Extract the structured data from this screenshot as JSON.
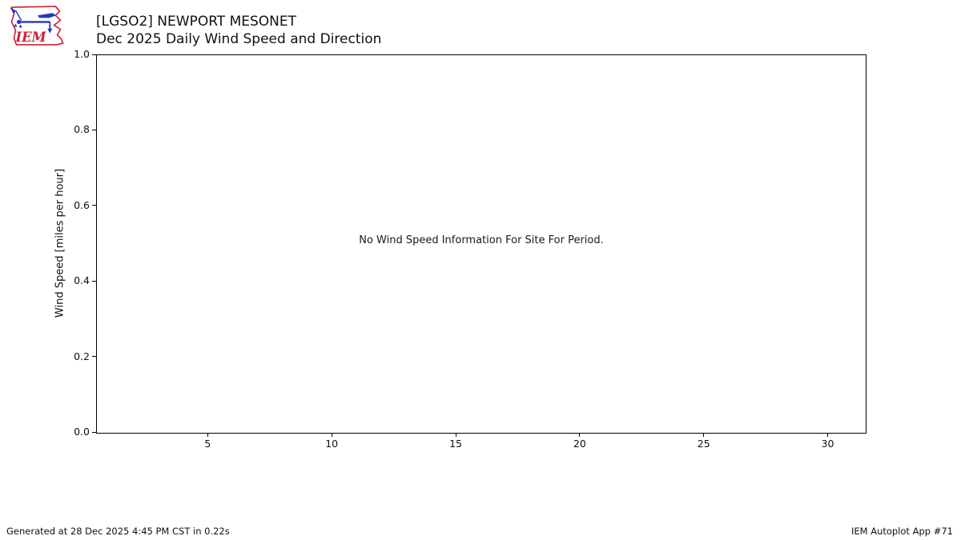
{
  "logo": {
    "label": "IEM",
    "red": "#cc2233",
    "blue": "#2438c3"
  },
  "header": {
    "title_line1": "[LGSO2] NEWPORT MESONET",
    "title_line2": "Dec 2025 Daily Wind Speed and Direction"
  },
  "chart_data": {
    "type": "line",
    "title": "[LGSO2] NEWPORT MESONET",
    "subtitle": "Dec 2025 Daily Wind Speed and Direction",
    "xlabel": "",
    "ylabel": "Wind Speed [miles per hour]",
    "x_ticks": [
      "5",
      "10",
      "15",
      "20",
      "25",
      "30"
    ],
    "y_ticks": [
      "0.0",
      "0.2",
      "0.4",
      "0.6",
      "0.8",
      "1.0"
    ],
    "xlim": [
      0.5,
      31.5
    ],
    "ylim": [
      0.0,
      1.0
    ],
    "grid": false,
    "legend": "none",
    "series": [],
    "annotation": "No Wind Speed Information For Site For Period."
  },
  "footer": {
    "generated": "Generated at 28 Dec 2025 4:45 PM CST in 0.22s",
    "app": "IEM Autoplot App #71"
  }
}
